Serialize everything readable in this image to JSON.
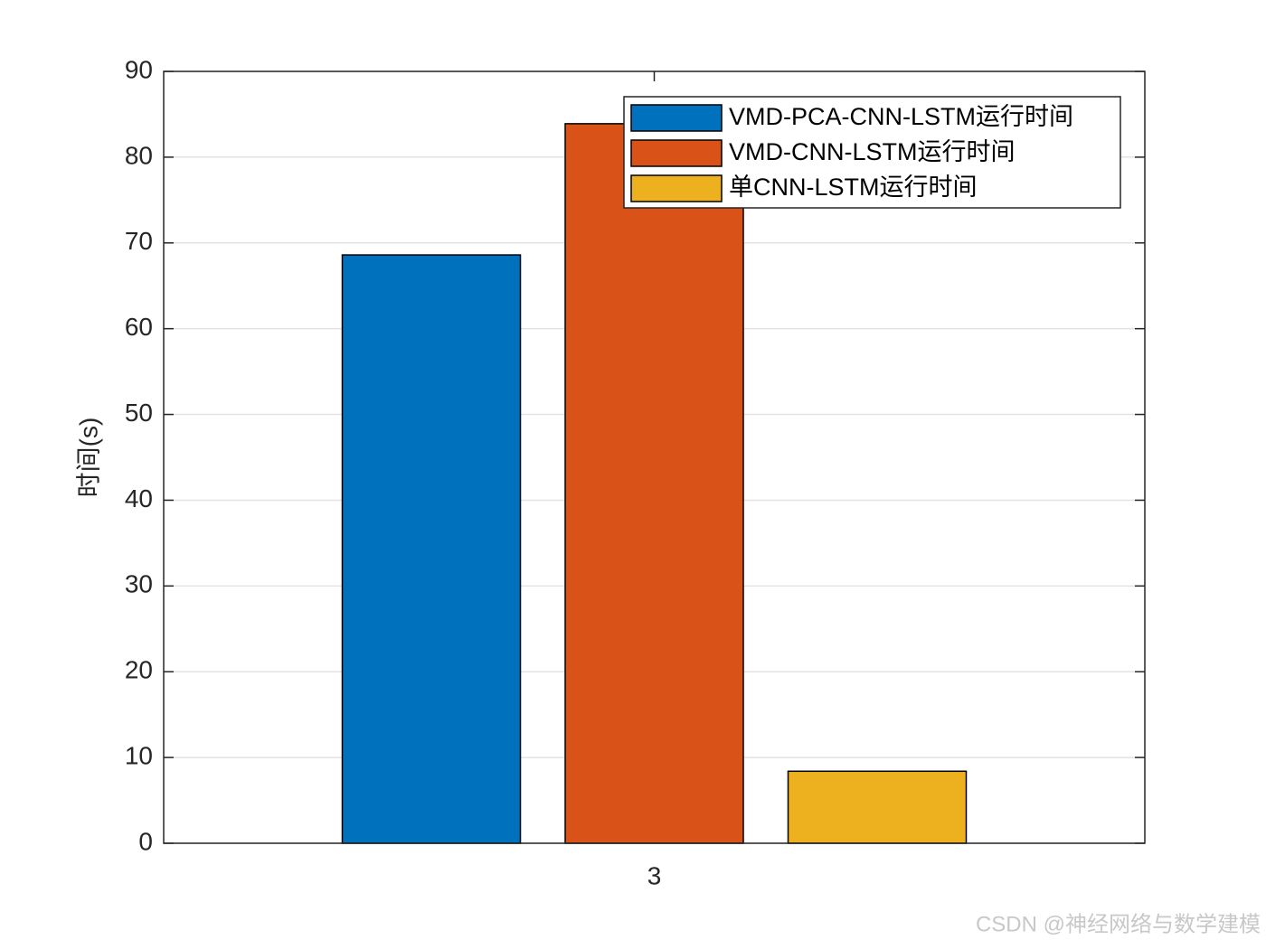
{
  "chart_data": {
    "type": "bar",
    "categories": [
      "3"
    ],
    "ylabel": "时间(s)",
    "series": [
      {
        "name": "VMD-PCA-CNN-LSTM运行时间",
        "color": "#0072bd",
        "values": [
          68.6
        ]
      },
      {
        "name": "VMD-CNN-LSTM运行时间",
        "color": "#d95319",
        "values": [
          83.9
        ]
      },
      {
        "name": "单CNN-LSTM运行时间",
        "color": "#edb120",
        "values": [
          8.4
        ]
      }
    ],
    "ylim": [
      0,
      90
    ],
    "yticks": [
      0,
      10,
      20,
      30,
      40,
      50,
      60,
      70,
      80,
      90
    ],
    "grid": true,
    "legend": "top-right",
    "watermark": "CSDN @神经网络与数学建模"
  }
}
